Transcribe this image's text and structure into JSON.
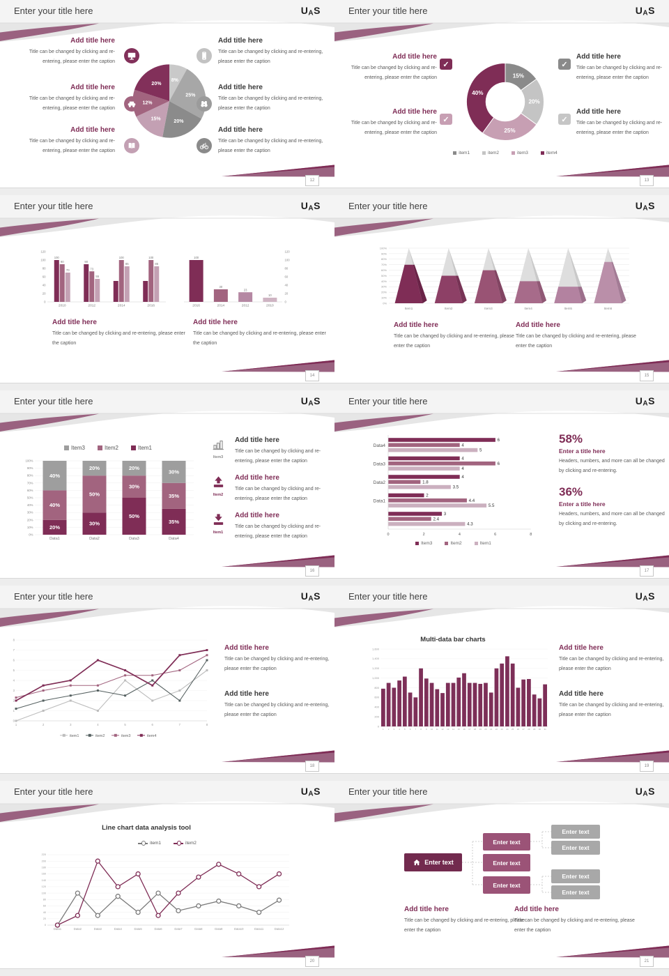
{
  "common": {
    "slide_title": "Enter your title here",
    "logo_u": "U",
    "logo_a": "A",
    "logo_s": "S",
    "add_title": "Add title here",
    "caption": "Title can be changed by clicking and re-entering, please enter the caption",
    "check_glyph": "✓",
    "accent": "#7f2d56"
  },
  "slides": [
    {
      "page": "12"
    },
    {
      "page": "13"
    },
    {
      "page": "14"
    },
    {
      "page": "15"
    },
    {
      "page": "16",
      "rows": [
        {
          "item": "Item3"
        },
        {
          "item": "Item2"
        },
        {
          "item": "Item1"
        }
      ]
    },
    {
      "page": "17",
      "stats": [
        {
          "pct": "58%",
          "title": "Enter a title here",
          "caption": "Headers, numbers, and more can all be changed by clicking and re-entering."
        },
        {
          "pct": "36%",
          "title": "Enter a title here",
          "caption": "Headers, numbers, and more can all be changed by clicking and re-entering."
        }
      ]
    },
    {
      "page": "18"
    },
    {
      "page": "19",
      "chart_title": "Multi-data bar charts"
    },
    {
      "page": "20",
      "chart_title": "Line chart data analysis tool"
    },
    {
      "page": "21",
      "node_label": "Enter text"
    }
  ],
  "chart_data": [
    {
      "id": "pie-12",
      "type": "pie",
      "title": "",
      "labels": [
        "8%",
        "25%",
        "20%",
        "15%",
        "12%",
        "20%"
      ],
      "values": [
        8,
        25,
        20,
        15,
        12,
        20
      ],
      "colors": [
        "#c9c9c9",
        "#a7a7a7",
        "#8b8b8b",
        "#c3a0b3",
        "#a2647f",
        "#82305a"
      ]
    },
    {
      "id": "donut-13",
      "type": "pie",
      "labels": [
        "15%",
        "20%",
        "25%",
        "40%"
      ],
      "values": [
        15,
        20,
        25,
        40
      ],
      "colors": [
        "#8a8a8a",
        "#c4c4c4",
        "#c79fb3",
        "#7f2d56"
      ],
      "legend": [
        {
          "label": "item1",
          "color": "#8a8a8a"
        },
        {
          "label": "item2",
          "color": "#c4c4c4"
        },
        {
          "label": "item3",
          "color": "#c79fb3"
        },
        {
          "label": "item4",
          "color": "#7f2d56"
        }
      ]
    },
    {
      "id": "bars-14a",
      "type": "bar",
      "categories": [
        "2010",
        "2012",
        "2014",
        "2016"
      ],
      "series": [
        [
          100,
          90,
          50,
          50
        ],
        [
          90,
          73,
          100,
          100
        ],
        [
          70,
          55,
          85,
          85
        ]
      ],
      "bar_labels": [
        [
          "100",
          "90",
          "70"
        ],
        [
          "90",
          "73",
          "55"
        ],
        [
          null,
          "100",
          "85"
        ],
        [
          null,
          "100",
          "85"
        ]
      ],
      "colors": [
        "#7f2d56",
        "#a2647f",
        "#c4a1b4"
      ],
      "ymax": 120,
      "yticks": [
        0,
        20,
        40,
        60,
        80,
        100,
        120
      ]
    },
    {
      "id": "bars-14b",
      "type": "bar",
      "categories": [
        "2016",
        "2014",
        "2012",
        "2010"
      ],
      "values": [
        100,
        30,
        23,
        10
      ],
      "bar_labels": [
        "100",
        "30",
        "23",
        "10"
      ],
      "colors": [
        "#7f2d56",
        "#a2647f",
        "#b588a3",
        "#cfb4c3"
      ],
      "ymax": 120,
      "yticks": [
        0,
        20,
        40,
        60,
        80,
        100,
        120
      ]
    },
    {
      "id": "pyramid-15",
      "type": "bar",
      "categories": [
        "Item1",
        "Item2",
        "Item3",
        "Item4",
        "Item5",
        "Item6"
      ],
      "values": [
        70,
        50,
        60,
        40,
        30,
        75
      ],
      "colors": [
        "#7f2d56",
        "#8d4066",
        "#995374",
        "#a76b8a",
        "#b382a0",
        "#ba8fa9"
      ],
      "side_colors": [
        "#6a2347",
        "#773355",
        "#824462",
        "#905875",
        "#9c6f8b",
        "#a37b95"
      ],
      "empty_front": "#dedede",
      "empty_side": "#c9c9c9",
      "yticks": [
        "0%",
        "10%",
        "20%",
        "30%",
        "40%",
        "50%",
        "60%",
        "70%",
        "80%",
        "90%",
        "100%"
      ]
    },
    {
      "id": "stack-16",
      "type": "bar",
      "categories": [
        "Data1",
        "Data2",
        "Data3",
        "Data4"
      ],
      "series": [
        {
          "name": "Item1",
          "color": "#7f2d56",
          "values": [
            20,
            30,
            50,
            35
          ]
        },
        {
          "name": "Item2",
          "color": "#a2647f",
          "values": [
            40,
            50,
            30,
            35
          ]
        },
        {
          "name": "Item3",
          "color": "#9e9e9e",
          "values": [
            40,
            20,
            20,
            30
          ]
        }
      ],
      "legend": [
        {
          "label": "Item3",
          "color": "#9e9e9e"
        },
        {
          "label": "Item2",
          "color": "#a2647f"
        },
        {
          "label": "Item1",
          "color": "#7f2d56"
        }
      ],
      "yticks": [
        "0%",
        "10%",
        "20%",
        "30%",
        "40%",
        "50%",
        "60%",
        "70%",
        "80%",
        "90%",
        "100%"
      ]
    },
    {
      "id": "hbar-17",
      "type": "bar",
      "cat_labels": [
        "Data4",
        "Data3",
        "Data2",
        "Data1",
        null
      ],
      "groups": [
        [
          6,
          4,
          5
        ],
        [
          4,
          6,
          4
        ],
        [
          4,
          1.8,
          3.5
        ],
        [
          2,
          4.4,
          5.5
        ],
        [
          3,
          2.4,
          4.3
        ]
      ],
      "labels": [
        [
          "6",
          "4",
          "5"
        ],
        [
          "4",
          "6",
          "4"
        ],
        [
          "4",
          "1.8",
          "3.5"
        ],
        [
          "2",
          "4.4",
          "5.5"
        ],
        [
          "3",
          "2.4",
          "4.3"
        ]
      ],
      "colors": [
        "#7f2d56",
        "#a2647f",
        "#cbb0bf"
      ],
      "xticks": [
        0,
        2,
        4,
        6,
        8
      ],
      "xmax": 8,
      "legend": [
        {
          "label": "Item3",
          "color": "#7f2d56"
        },
        {
          "label": "Item2",
          "color": "#a2647f"
        },
        {
          "label": "Item1",
          "color": "#cbb0bf"
        }
      ]
    },
    {
      "id": "line-18",
      "type": "line",
      "x_labels": [
        "1",
        "2",
        "3",
        "4",
        "5",
        "6",
        "7",
        "8"
      ],
      "ymax": 8,
      "yticks": [
        0,
        1,
        2,
        3,
        4,
        5,
        6,
        7,
        8
      ],
      "series": [
        {
          "name": "item1",
          "color": "#bdbdbd",
          "values": [
            0,
            1,
            2,
            1,
            4,
            2,
            3,
            5
          ]
        },
        {
          "name": "item2",
          "color": "#566161",
          "values": [
            1.2,
            2,
            2.5,
            3,
            2.5,
            4,
            2,
            6
          ]
        },
        {
          "name": "item3",
          "color": "#a2647f",
          "values": [
            2.3,
            3,
            3.5,
            3.5,
            4.5,
            4.5,
            5,
            6.5
          ]
        },
        {
          "name": "item4",
          "color": "#7f2d56",
          "values": [
            2,
            3.5,
            4,
            6,
            5,
            3.5,
            6.5,
            7
          ]
        }
      ]
    },
    {
      "id": "bars-19",
      "type": "bar",
      "title": "Multi-data bar charts",
      "color": "#7d2f58",
      "values": [
        780,
        900,
        800,
        950,
        1030,
        700,
        600,
        1200,
        990,
        900,
        770,
        690,
        900,
        900,
        1010,
        1100,
        900,
        900,
        880,
        900,
        700,
        1200,
        1300,
        1450,
        1300,
        800,
        970,
        980,
        660,
        580,
        870
      ],
      "x_labels": [
        "1",
        "2",
        "3",
        "4",
        "5",
        "6",
        "7",
        "8",
        "9",
        "10",
        "11",
        "12",
        "13",
        "14",
        "15",
        "16",
        "17",
        "18",
        "19",
        "20",
        "21",
        "22",
        "23",
        "24",
        "25",
        "26",
        "27",
        "28",
        "29",
        "30",
        "31"
      ],
      "ymax": 1600,
      "yticks": [
        0,
        200,
        400,
        600,
        800,
        1000,
        1200,
        1400,
        1600
      ],
      "ytick_labels": [
        "0",
        "200",
        "400",
        "600",
        "800",
        "1,000",
        "1,200",
        "1,400",
        "1,600"
      ]
    },
    {
      "id": "line-20",
      "type": "line",
      "title": "Line chart data analysis tool",
      "x_labels": [
        "Data1",
        "Data2",
        "Data3",
        "Data4",
        "Data5",
        "Data6",
        "Data7",
        "Data8",
        "Data9",
        "Data10",
        "Data11",
        "Data12"
      ],
      "ymax": 220,
      "ytick_step": 20,
      "series": [
        {
          "name": "item1",
          "color": "#7a7a7a",
          "values": [
            0,
            100,
            30,
            90,
            40,
            100,
            45,
            60,
            75,
            60,
            40,
            78
          ]
        },
        {
          "name": "item2",
          "color": "#7f2d56",
          "values": [
            0,
            30,
            200,
            120,
            160,
            30,
            100,
            150,
            190,
            160,
            120,
            160
          ]
        }
      ],
      "legend": [
        {
          "label": "item1",
          "color": "#7a7a7a"
        },
        {
          "label": "item2",
          "color": "#7f2d56"
        }
      ]
    }
  ]
}
